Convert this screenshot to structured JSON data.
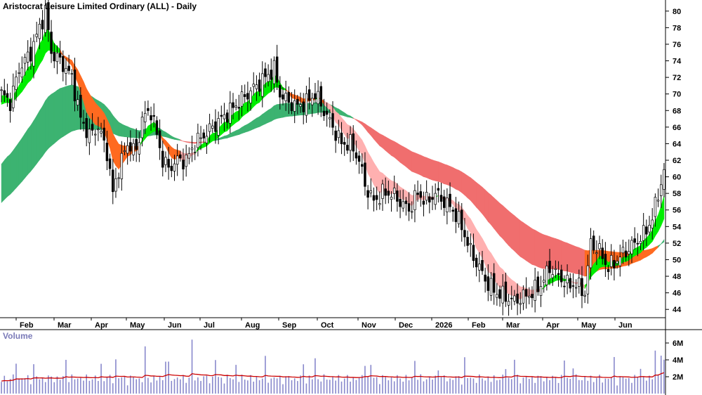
{
  "chart_data": {
    "type": "candlestick",
    "title": "Aristocrat Leisure Limited Ordinary (ALL) - Daily",
    "price_axis": {
      "ylim": [
        43,
        81
      ],
      "ticks": [
        44,
        46,
        48,
        50,
        52,
        54,
        56,
        58,
        60,
        62,
        64,
        66,
        68,
        70,
        72,
        74,
        76,
        78,
        80
      ]
    },
    "months": [
      "Feb",
      "Mar",
      "Apr",
      "May",
      "Jun",
      "Jul",
      "Aug",
      "Sep",
      "Oct",
      "Nov",
      "Dec",
      "2026",
      "Feb",
      "Mar",
      "Apr",
      "May",
      "Jun"
    ],
    "price_path": [
      [
        0,
        70
      ],
      [
        3,
        69
      ],
      [
        6,
        73
      ],
      [
        10,
        75
      ],
      [
        13,
        78
      ],
      [
        15,
        80
      ],
      [
        17,
        75
      ],
      [
        20,
        74
      ],
      [
        24,
        72
      ],
      [
        27,
        67
      ],
      [
        30,
        65
      ],
      [
        33,
        66
      ],
      [
        36,
        63
      ],
      [
        38,
        58
      ],
      [
        40,
        61
      ],
      [
        43,
        64
      ],
      [
        46,
        63
      ],
      [
        48,
        67
      ],
      [
        51,
        68
      ],
      [
        53,
        65
      ],
      [
        55,
        62
      ],
      [
        57,
        61
      ],
      [
        60,
        62
      ],
      [
        63,
        62
      ],
      [
        66,
        64
      ],
      [
        69,
        65
      ],
      [
        72,
        66
      ],
      [
        75,
        67
      ],
      [
        78,
        68
      ],
      [
        81,
        69
      ],
      [
        84,
        70
      ],
      [
        87,
        71
      ],
      [
        90,
        72
      ],
      [
        93,
        73
      ],
      [
        95,
        70
      ],
      [
        98,
        69
      ],
      [
        101,
        68.5
      ],
      [
        104,
        69
      ],
      [
        107,
        70
      ],
      [
        110,
        68
      ],
      [
        113,
        66
      ],
      [
        116,
        64
      ],
      [
        119,
        64
      ],
      [
        122,
        62
      ],
      [
        124,
        59
      ],
      [
        127,
        57
      ],
      [
        130,
        58
      ],
      [
        133,
        58
      ],
      [
        136,
        57
      ],
      [
        139,
        56
      ],
      [
        142,
        58
      ],
      [
        145,
        57
      ],
      [
        148,
        58
      ],
      [
        151,
        57
      ],
      [
        154,
        56
      ],
      [
        157,
        54
      ],
      [
        160,
        51
      ],
      [
        163,
        49
      ],
      [
        166,
        47
      ],
      [
        169,
        46
      ],
      [
        172,
        45.5
      ],
      [
        175,
        45
      ],
      [
        178,
        45.5
      ],
      [
        181,
        46
      ],
      [
        184,
        47
      ],
      [
        187,
        49
      ],
      [
        190,
        48
      ],
      [
        193,
        47
      ],
      [
        196,
        47
      ],
      [
        199,
        46
      ],
      [
        201,
        52
      ],
      [
        204,
        51
      ],
      [
        207,
        49
      ],
      [
        210,
        50
      ],
      [
        213,
        51
      ],
      [
        216,
        52
      ],
      [
        219,
        53
      ],
      [
        222,
        55
      ],
      [
        224,
        58
      ],
      [
        226,
        60.5
      ]
    ],
    "bands": {
      "short_upper_start": 69.5,
      "short_lower_start": 68.5,
      "long_upper_start": 61,
      "long_lower_start": 56.5,
      "colors": {
        "up_short": "#00ee00",
        "down_short": "#ff6a20",
        "down_short_light": "#ffb0b0",
        "long_up": "#3cb371",
        "long_down": "#f06e6e",
        "long_orange": "#ff6a20"
      }
    },
    "volume_axis": {
      "ylim": [
        0,
        7000000
      ],
      "ticks": [
        "2M",
        "4M",
        "6M"
      ],
      "tick_values": [
        2000000,
        4000000,
        6000000
      ]
    },
    "volume_label": "Volume",
    "colors": {
      "volume_bar": "#8888cc",
      "volume_ma": "#cc0000",
      "candle": "#000000"
    }
  }
}
